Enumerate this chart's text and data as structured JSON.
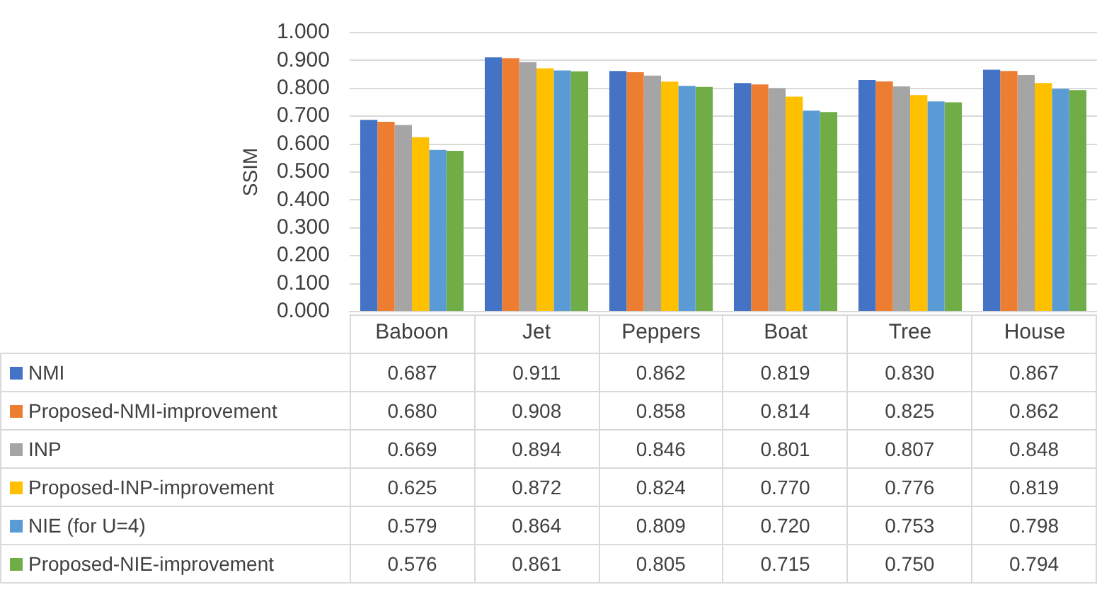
{
  "chart_data": {
    "type": "bar",
    "ylabel": "SSIM",
    "categories": [
      "Baboon",
      "Jet",
      "Peppers",
      "Boat",
      "Tree",
      "House"
    ],
    "series": [
      {
        "name": "NMI",
        "color": "#4472c4",
        "values": [
          0.687,
          0.911,
          0.862,
          0.819,
          0.83,
          0.867
        ],
        "value_labels": [
          "0.687",
          "0.911",
          "0.862",
          "0.819",
          "0.830",
          "0.867"
        ]
      },
      {
        "name": "Proposed-NMI-improvement",
        "color": "#ed7d31",
        "values": [
          0.68,
          0.908,
          0.858,
          0.814,
          0.825,
          0.862
        ],
        "value_labels": [
          "0.680",
          "0.908",
          "0.858",
          "0.814",
          "0.825",
          "0.862"
        ]
      },
      {
        "name": "INP",
        "color": "#a5a5a5",
        "values": [
          0.669,
          0.894,
          0.846,
          0.801,
          0.807,
          0.848
        ],
        "value_labels": [
          "0.669",
          "0.894",
          "0.846",
          "0.801",
          "0.807",
          "0.848"
        ]
      },
      {
        "name": "Proposed-INP-improvement",
        "color": "#ffc000",
        "values": [
          0.625,
          0.872,
          0.824,
          0.77,
          0.776,
          0.819
        ],
        "value_labels": [
          "0.625",
          "0.872",
          "0.824",
          "0.770",
          "0.776",
          "0.819"
        ]
      },
      {
        "name": "NIE (for U=4)",
        "color": "#5b9bd5",
        "values": [
          0.579,
          0.864,
          0.809,
          0.72,
          0.753,
          0.798
        ],
        "value_labels": [
          "0.579",
          "0.864",
          "0.809",
          "0.720",
          "0.753",
          "0.798"
        ]
      },
      {
        "name": "Proposed-NIE-improvement",
        "color": "#70ad47",
        "values": [
          0.576,
          0.861,
          0.805,
          0.715,
          0.75,
          0.794
        ],
        "value_labels": [
          "0.576",
          "0.861",
          "0.805",
          "0.715",
          "0.750",
          "0.794"
        ]
      }
    ],
    "ylim": [
      0,
      1
    ],
    "yticks": [
      {
        "value": 0,
        "label": "0.000"
      },
      {
        "value": 0.1,
        "label": "0.100"
      },
      {
        "value": 0.2,
        "label": "0.200"
      },
      {
        "value": 0.3,
        "label": "0.300"
      },
      {
        "value": 0.4,
        "label": "0.400"
      },
      {
        "value": 0.5,
        "label": "0.500"
      },
      {
        "value": 0.6,
        "label": "0.600"
      },
      {
        "value": 0.7,
        "label": "0.700"
      },
      {
        "value": 0.8,
        "label": "0.800"
      },
      {
        "value": 0.9,
        "label": "0.900"
      },
      {
        "value": 1,
        "label": "1.000"
      }
    ],
    "grid": "y",
    "legend": "bottom"
  }
}
